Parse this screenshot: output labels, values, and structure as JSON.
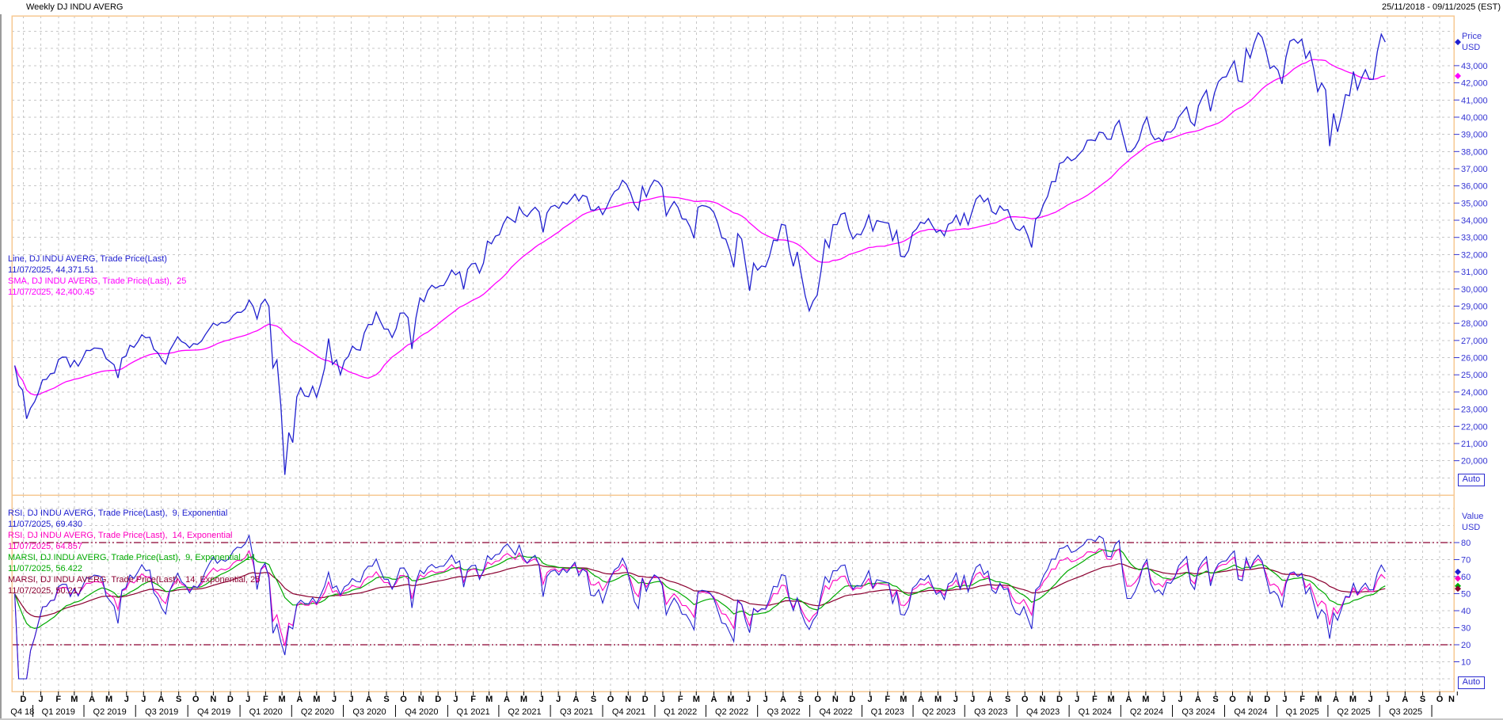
{
  "header": {
    "title": "Weekly DJ INDU AVERG",
    "date_range": "25/11/2018 - 09/11/2025 (EST)"
  },
  "colors": {
    "price": "#2020cf",
    "sma": "#ff00ff",
    "rsi9": "#2020cf",
    "rsi14": "#ff00c0",
    "marsi9": "#00aa00",
    "marsi14": "#8b0030",
    "threshold": "#8b0030",
    "frame": "#f7c993",
    "grid": "#c7c7c7",
    "axis_text": "#3434d3",
    "label_text": "#000000"
  },
  "price_panel": {
    "axis_title": "Price",
    "axis_unit": "USD",
    "auto_label": "Auto",
    "ticks": [
      "43,000",
      "42,000",
      "41,000",
      "40,000",
      "39,000",
      "38,000",
      "37,000",
      "36,000",
      "35,000",
      "34,000",
      "33,000",
      "32,000",
      "31,000",
      "30,000",
      "29,000",
      "28,000",
      "27,000",
      "26,000",
      "25,000",
      "24,000",
      "23,000",
      "22,000",
      "21,000",
      "20,000"
    ]
  },
  "rsi_panel": {
    "axis_title": "Value",
    "axis_unit": "USD",
    "auto_label": "Auto",
    "ticks": [
      "80",
      "70",
      "60",
      "50",
      "40",
      "30",
      "20",
      "10"
    ],
    "thresholds": [
      80,
      20
    ]
  },
  "legend_price": [
    {
      "series": "price",
      "label": "Line, DJ INDU AVERG, Trade Price(Last)",
      "value": "11/07/2025, 44,371.51"
    },
    {
      "series": "sma",
      "label": "SMA, DJ INDU AVERG, Trade Price(Last),  25",
      "value": "11/07/2025, 42,400.45"
    }
  ],
  "legend_rsi": [
    {
      "series": "rsi9",
      "label": "RSI, DJ INDU AVERG, Trade Price(Last),  9, Exponential",
      "value": "11/07/2025, 69.430"
    },
    {
      "series": "rsi14",
      "label": "RSI, DJ INDU AVERG, Trade Price(Last),  14, Exponential",
      "value": "11/07/2025, 64.857"
    },
    {
      "series": "marsi9",
      "label": "MARSI, DJ INDU AVERG, Trade Price(Last),  9, Exponential, 14",
      "value": "11/07/2025, 56.422"
    },
    {
      "series": "marsi14",
      "label": "MARSI, DJ INDU AVERG, Trade Price(Last),  14, Exponential, 25",
      "value": "11/07/2025, 50.217"
    }
  ],
  "chart_data": {
    "type": "line",
    "title": "Weekly DJ INDU AVERG",
    "frequency": "weekly",
    "x_range": [
      "2018-11-25",
      "2025-11-09"
    ],
    "first_close_date": "2018-11-30",
    "price_axis": {
      "label": "Price USD",
      "range": [
        18000,
        45900
      ],
      "tick_step": 1000,
      "tick_min": 20000,
      "tick_max": 43000,
      "grid": true
    },
    "rsi_axis": {
      "label": "Value USD",
      "range": [
        0,
        100
      ],
      "tick_step": 10,
      "tick_min": 10,
      "tick_max": 80,
      "thresholds": [
        20,
        80
      ],
      "grid": true
    },
    "legend_position": "left-inside",
    "series": [
      {
        "name": "DJ INDU AVERG, Trade Price(Last), weekly close",
        "color_key": "price",
        "last_value": 44371.51,
        "values": [
          25538,
          24389,
          24101,
          22445,
          23062,
          23433,
          23996,
          24706,
          24737,
          25064,
          25106,
          25883,
          26032,
          26026,
          25450,
          25849,
          25502,
          25929,
          26425,
          26412,
          26560,
          26543,
          26505,
          25942,
          25764,
          25586,
          24815,
          25984,
          26090,
          26719,
          26600,
          26922,
          27332,
          27154,
          27192,
          26485,
          26287,
          25886,
          25629,
          26403,
          26797,
          27220,
          26935,
          26820,
          26574,
          26817,
          26770,
          26958,
          27347,
          27681,
          28005,
          27875,
          28051,
          28015,
          28135,
          28455,
          28645,
          28635,
          28824,
          29348,
          28990,
          28256,
          29103,
          29398,
          28992,
          25409,
          25865,
          23186,
          19174,
          21637,
          21053,
          23719,
          24242,
          23775,
          23724,
          24331,
          23685,
          24465,
          25383,
          27111,
          25606,
          25871,
          25016,
          25827,
          26075,
          26672,
          26470,
          26428,
          27433,
          27931,
          27930,
          28654,
          28133,
          27666,
          27657,
          27174,
          27683,
          28587,
          28606,
          28336,
          26502,
          28323,
          29480,
          29263,
          29910,
          30218,
          30046,
          30179,
          30200,
          30606,
          31098,
          30814,
          30997,
          29983,
          31148,
          31458,
          31494,
          30932,
          31496,
          32779,
          32628,
          33073,
          33153,
          33801,
          34201,
          34043,
          33875,
          34778,
          34382,
          34208,
          34529,
          34756,
          34480,
          33290,
          34434,
          34786,
          34870,
          34688,
          35062,
          34935,
          35209,
          35515,
          35120,
          35456,
          35369,
          34608,
          34585,
          34798,
          34326,
          34746,
          35295,
          35677,
          35820,
          36328,
          36100,
          35602,
          34899,
          34580,
          35971,
          35365,
          35950,
          36338,
          36232,
          35912,
          34265,
          34725,
          35090,
          34738,
          34079,
          34059,
          33615,
          32944,
          34755,
          34861,
          34818,
          34721,
          34451,
          33811,
          32977,
          32899,
          32197,
          31262,
          33213,
          32900,
          31393,
          29889,
          31500,
          31097,
          31338,
          31288,
          31899,
          32845,
          32803,
          33761,
          33707,
          32283,
          31318,
          32152,
          30822,
          29590,
          28726,
          29297,
          29635,
          31083,
          32862,
          32403,
          33748,
          33746,
          34347,
          34430,
          33476,
          32920,
          33204,
          33147,
          33631,
          34303,
          33375,
          33978,
          33926,
          33869,
          33827,
          32817,
          33391,
          31910,
          31862,
          32238,
          33274,
          33485,
          33886,
          33809,
          34098,
          33675,
          33301,
          33427,
          33093,
          33763,
          33877,
          34299,
          33727,
          34408,
          33735,
          34509,
          35228,
          35459,
          35066,
          35281,
          34501,
          34347,
          34838,
          34577,
          34618,
          33964,
          33508,
          33408,
          33670,
          33127,
          32418,
          34061,
          34283,
          34947,
          35390,
          36245,
          36248,
          37305,
          37386,
          37690,
          37466,
          37593,
          37864,
          38109,
          38654,
          38672,
          38628,
          39132,
          39087,
          38723,
          38715,
          39476,
          39807,
          38904,
          37983,
          37986,
          38240,
          38676,
          39513,
          40004,
          39070,
          38686,
          38799,
          38589,
          39150,
          39119,
          39376,
          40001,
          40288,
          40589,
          39737,
          39498,
          40660,
          41175,
          41563,
          40345,
          41394,
          42063,
          42313,
          42353,
          42864,
          43276,
          42114,
          42052,
          43989,
          43445,
          44297,
          44911,
          44643,
          43828,
          42840,
          42992,
          42732,
          41938,
          43488,
          44424,
          44545,
          44303,
          44546,
          43428,
          43841,
          42802,
          41488,
          41985,
          41584,
          38315,
          40213,
          39142,
          40114,
          41317,
          41249,
          42655,
          41603,
          42270,
          42763,
          42198,
          42207,
          43819,
          44829,
          44372
        ]
      }
    ],
    "derived_series": [
      {
        "name": "SMA, 25",
        "color_key": "sma",
        "type": "sma",
        "period": 25,
        "last_value": 42400.45
      },
      {
        "name": "RSI, 9, Exponential",
        "color_key": "rsi9",
        "type": "rsi",
        "period": 9,
        "last_value": 69.43
      },
      {
        "name": "RSI, 14, Exponential",
        "color_key": "rsi14",
        "type": "rsi",
        "period": 14,
        "last_value": 64.857
      },
      {
        "name": "MARSI, 9, Exponential, 14",
        "color_key": "marsi9",
        "type": "ema_of_rsi",
        "rsi_period": 9,
        "ma_period": 14,
        "last_value": 56.422
      },
      {
        "name": "MARSI, 14, Exponential, 25",
        "color_key": "marsi14",
        "type": "ema_of_rsi",
        "rsi_period": 14,
        "ma_period": 25,
        "last_value": 50.217
      }
    ],
    "x_axis": {
      "month_labels": [
        "D",
        "J",
        "F",
        "M",
        "A",
        "M",
        "J",
        "J",
        "A",
        "S",
        "O",
        "N",
        "D",
        "J",
        "F",
        "M",
        "A",
        "M",
        "J",
        "J",
        "A",
        "S",
        "O",
        "N",
        "D",
        "J",
        "F",
        "M",
        "A",
        "M",
        "J",
        "J",
        "A",
        "S",
        "O",
        "N",
        "D",
        "J",
        "F",
        "M",
        "A",
        "M",
        "J",
        "J",
        "A",
        "S",
        "O",
        "N",
        "D",
        "J",
        "F",
        "M",
        "A",
        "M",
        "J",
        "J",
        "A",
        "S",
        "O",
        "N",
        "D",
        "J",
        "F",
        "M",
        "A",
        "M",
        "J",
        "J",
        "A",
        "S",
        "O",
        "N",
        "D",
        "J",
        "F",
        "M",
        "A",
        "M",
        "J",
        "J",
        "A",
        "S",
        "O",
        "N"
      ],
      "quarter_labels": [
        "Q4 18",
        "Q1 2019",
        "Q2 2019",
        "Q3 2019",
        "Q4 2019",
        "Q1 2020",
        "Q2 2020",
        "Q3 2020",
        "Q4 2020",
        "Q1 2021",
        "Q2 2021",
        "Q3 2021",
        "Q4 2021",
        "Q1 2022",
        "Q2 2022",
        "Q3 2022",
        "Q4 2022",
        "Q1 2023",
        "Q2 2023",
        "Q3 2023",
        "Q4 2023",
        "Q1 2024",
        "Q2 2024",
        "Q3 2024",
        "Q4 2024",
        "Q1 2025",
        "Q2 2025",
        "Q3 2025"
      ]
    }
  }
}
